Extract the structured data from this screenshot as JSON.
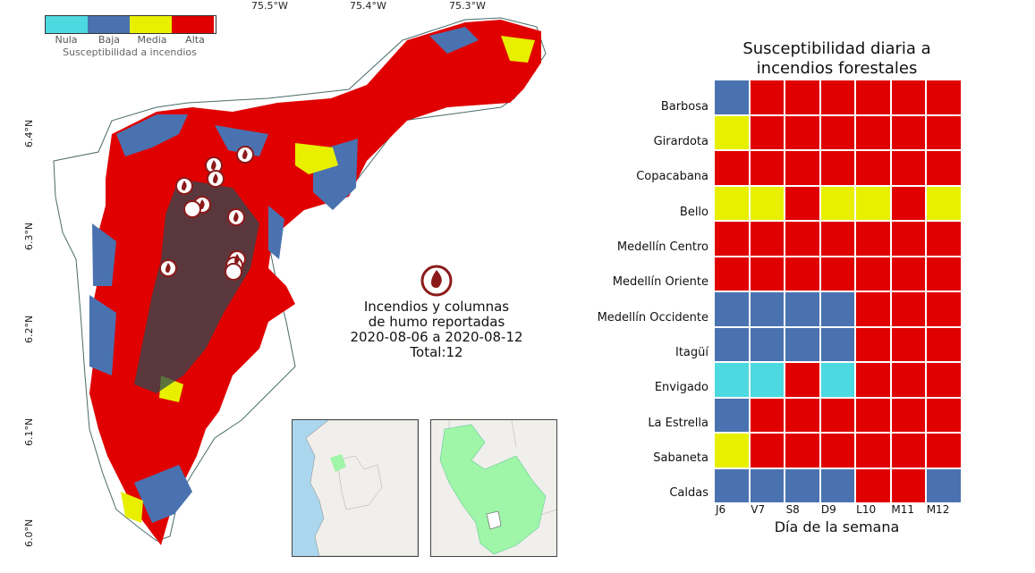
{
  "map": {
    "legend": {
      "labels": [
        "Nula",
        "Baja",
        "Media",
        "Alta"
      ],
      "colors": [
        "#4dd9e0",
        "#4a72b0",
        "#e8f000",
        "#e00000"
      ],
      "title": "Susceptibilidad a incendios"
    },
    "lon_labels": [
      "75.5°W",
      "75.4°W",
      "75.3°W"
    ],
    "lat_labels": [
      "6.4°N",
      "6.3°N",
      "6.2°N",
      "6.1°N",
      "6.0°N"
    ],
    "caption": {
      "line1": "Incendios y columnas",
      "line2": "de humo reportadas",
      "line3": "2020-08-06 a 2020-08-12",
      "line4": "Total:12"
    },
    "fire_icon": "fire-icon"
  },
  "chart_data": {
    "type": "heatmap",
    "title": "Susceptibilidad diaria a incendios forestales",
    "xlabel": "Día de la semana",
    "columns": [
      "J6",
      "V7",
      "S8",
      "D9",
      "L10",
      "M11",
      "M12"
    ],
    "rows": [
      "Barbosa",
      "Girardota",
      "Copacabana",
      "Bello",
      "Medellín Centro",
      "Medellín Oriente",
      "Medellín Occidente",
      "Itagüí",
      "Envigado",
      "La Estrella",
      "Sabaneta",
      "Caldas"
    ],
    "categories": [
      "Nula",
      "Baja",
      "Media",
      "Alta"
    ],
    "colors": {
      "Nula": "#4dd9e0",
      "Baja": "#4a72b0",
      "Media": "#e8f000",
      "Alta": "#e00000"
    },
    "values": [
      [
        "Baja",
        "Alta",
        "Alta",
        "Alta",
        "Alta",
        "Alta",
        "Alta"
      ],
      [
        "Media",
        "Alta",
        "Alta",
        "Alta",
        "Alta",
        "Alta",
        "Alta"
      ],
      [
        "Alta",
        "Alta",
        "Alta",
        "Alta",
        "Alta",
        "Alta",
        "Alta"
      ],
      [
        "Media",
        "Media",
        "Alta",
        "Media",
        "Media",
        "Alta",
        "Media"
      ],
      [
        "Alta",
        "Alta",
        "Alta",
        "Alta",
        "Alta",
        "Alta",
        "Alta"
      ],
      [
        "Alta",
        "Alta",
        "Alta",
        "Alta",
        "Alta",
        "Alta",
        "Alta"
      ],
      [
        "Baja",
        "Baja",
        "Baja",
        "Baja",
        "Alta",
        "Alta",
        "Alta"
      ],
      [
        "Baja",
        "Baja",
        "Baja",
        "Baja",
        "Alta",
        "Alta",
        "Alta"
      ],
      [
        "Nula",
        "Nula",
        "Alta",
        "Nula",
        "Alta",
        "Alta",
        "Alta"
      ],
      [
        "Baja",
        "Alta",
        "Alta",
        "Alta",
        "Alta",
        "Alta",
        "Alta"
      ],
      [
        "Media",
        "Alta",
        "Alta",
        "Alta",
        "Alta",
        "Alta",
        "Alta"
      ],
      [
        "Baja",
        "Baja",
        "Baja",
        "Baja",
        "Alta",
        "Alta",
        "Baja"
      ]
    ]
  }
}
